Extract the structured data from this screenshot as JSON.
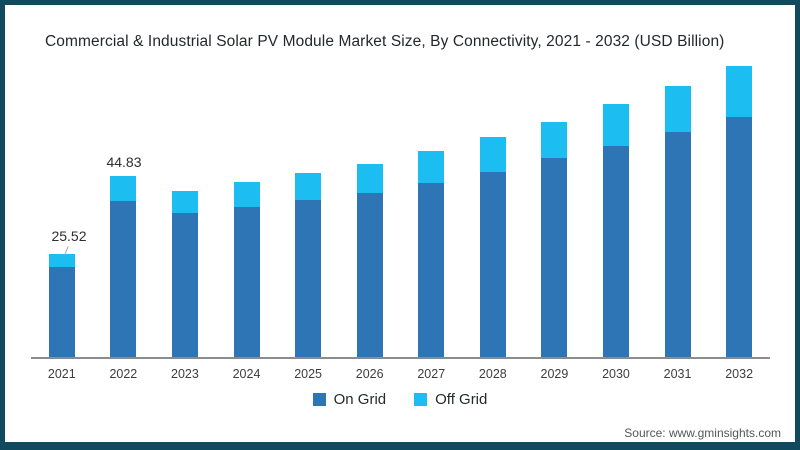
{
  "title": "Commercial & Industrial Solar PV Module Market Size, By Connectivity, 2021 - 2032 (USD Billion)",
  "source": "Source: www.gminsights.com",
  "colors": {
    "on_grid": "#2e75b6",
    "off_grid": "#1cbdf0",
    "frame_border": "#114a5e",
    "axis": "#8c8c8c"
  },
  "legend": [
    {
      "label": "On Grid",
      "color": "#2e75b6"
    },
    {
      "label": "Off Grid",
      "color": "#1cbdf0"
    }
  ],
  "annotations": [
    {
      "year": "2021",
      "text": "25.52"
    },
    {
      "year": "2022",
      "text": "44.83"
    }
  ],
  "chart_data": {
    "type": "bar",
    "stacked": true,
    "title": "Commercial & Industrial Solar PV Module Market Size, By Connectivity, 2021 - 2032 (USD Billion)",
    "xlabel": "",
    "ylabel": "USD Billion",
    "ylim": [
      0,
      80
    ],
    "grid": false,
    "legend_position": "bottom",
    "categories": [
      "2021",
      "2022",
      "2023",
      "2024",
      "2025",
      "2026",
      "2027",
      "2028",
      "2029",
      "2030",
      "2031",
      "2032"
    ],
    "series": [
      {
        "name": "On Grid",
        "color": "#2e75b6",
        "values": [
          22.32,
          38.63,
          35.6,
          37.1,
          38.8,
          40.6,
          43.1,
          45.8,
          49.3,
          52.2,
          55.7,
          59.4
        ]
      },
      {
        "name": "Off Grid",
        "color": "#1cbdf0",
        "values": [
          3.2,
          6.2,
          5.4,
          6.2,
          6.7,
          7.2,
          7.9,
          8.7,
          8.9,
          10.4,
          11.4,
          12.6
        ]
      }
    ],
    "totals": [
      25.52,
      44.83,
      41.0,
      43.3,
      45.5,
      47.8,
      51.0,
      54.5,
      58.2,
      62.6,
      67.1,
      72.0
    ],
    "labeled_totals": {
      "2021": 25.52,
      "2022": 44.83
    }
  }
}
